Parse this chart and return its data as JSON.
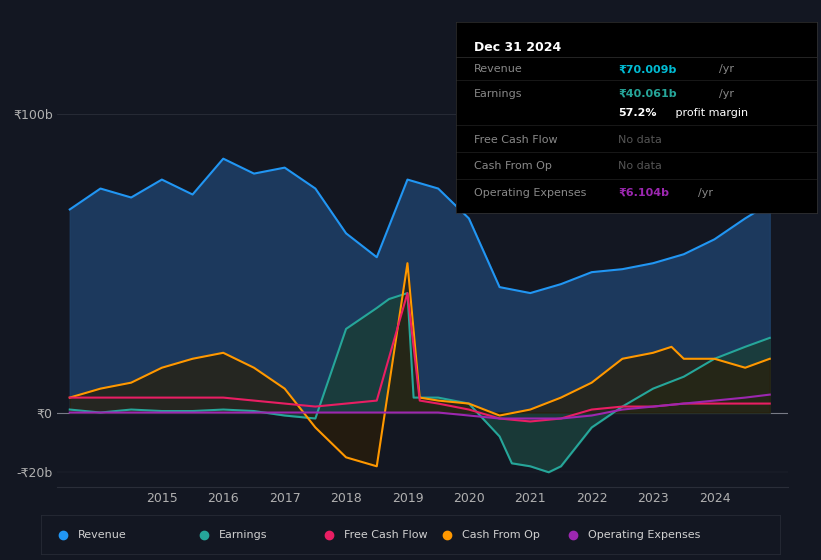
{
  "bg_color": "#131722",
  "plot_bg_color": "#131722",
  "grid_color": "#2a2e39",
  "zero_line_color": "#787b86",
  "title_box": {
    "date": "Dec 31 2024",
    "items": [
      {
        "label": "Revenue",
        "value": "₹70.009b /yr",
        "value_color": "#00bcd4",
        "dimmed": false
      },
      {
        "label": "Earnings",
        "value": "₹40.061b /yr",
        "value_color": "#26a69a",
        "dimmed": false
      },
      {
        "label": "",
        "value": "57.2% profit margin",
        "value_color": "#ffffff",
        "bold_part": "57.2%",
        "dimmed": false
      },
      {
        "label": "Free Cash Flow",
        "value": "No data",
        "value_color": "#888888",
        "dimmed": true
      },
      {
        "label": "Cash From Op",
        "value": "No data",
        "value_color": "#888888",
        "dimmed": true
      },
      {
        "label": "Operating Expenses",
        "value": "₹6.104b /yr",
        "value_color": "#9c27b0",
        "dimmed": false
      }
    ]
  },
  "ylim": [
    -20,
    105
  ],
  "yticks": [
    -20,
    0,
    100
  ],
  "ytick_labels": [
    "-₹20b",
    "₹0",
    "₹100b"
  ],
  "series": {
    "revenue": {
      "color": "#2196f3",
      "fill_color": "#1a3a5c",
      "label": "Revenue"
    },
    "earnings": {
      "color": "#26a69a",
      "fill_color": "#1a3d3a",
      "label": "Earnings"
    },
    "free_cash_flow": {
      "color": "#e91e63",
      "label": "Free Cash Flow"
    },
    "cash_from_op": {
      "color": "#ff9800",
      "fill_color": "#3a2a10",
      "label": "Cash From Op"
    },
    "operating_expenses": {
      "color": "#9c27b0",
      "label": "Operating Expenses"
    }
  },
  "legend": {
    "items": [
      {
        "label": "Revenue",
        "color": "#2196f3"
      },
      {
        "label": "Earnings",
        "color": "#26a69a"
      },
      {
        "label": "Free Cash Flow",
        "color": "#e91e63"
      },
      {
        "label": "Cash From Op",
        "color": "#ff9800"
      },
      {
        "label": "Operating Expenses",
        "color": "#9c27b0"
      }
    ]
  }
}
